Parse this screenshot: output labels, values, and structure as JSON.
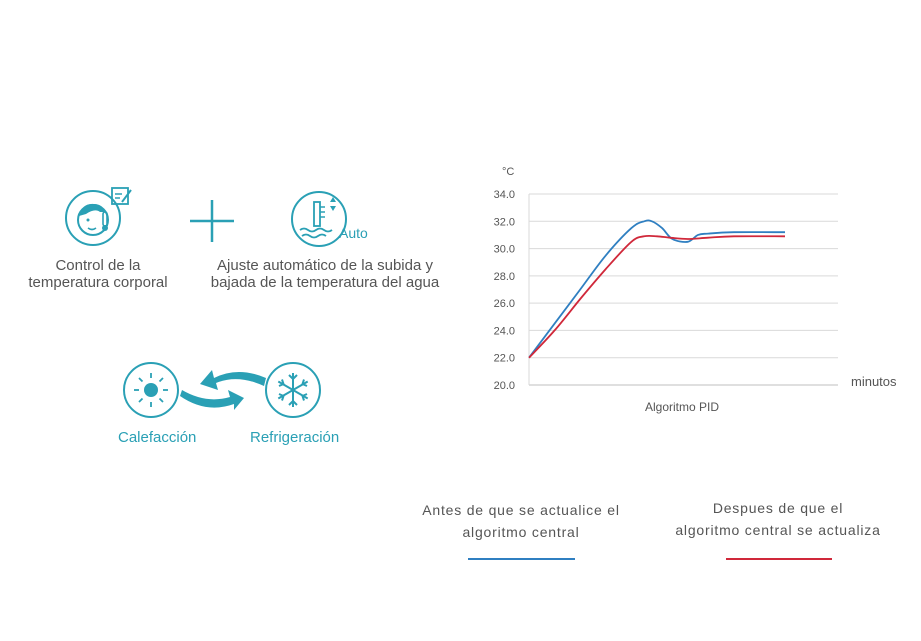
{
  "features": {
    "body_temp_label_1": "Control de la",
    "body_temp_label_2": "temperatura corporal",
    "water_adjust_label_1": "Ajuste automático de la subida y",
    "water_adjust_label_2": "bajada de la temperatura del agua",
    "auto_label": "Auto",
    "heating_label": "Calefacción",
    "cooling_label": "Refrigeración",
    "icons": [
      "child-thermometer-icon",
      "plus-icon",
      "water-level-icon",
      "sun-icon",
      "snowflake-icon",
      "exchange-arrows-icon"
    ]
  },
  "colors": {
    "teal": "#2aa0b5",
    "series_before": "#2f7fc1",
    "series_after": "#d0283a",
    "grid": "#d9d9d9"
  },
  "legend": {
    "before_line_1": "Antes de que se actualice el",
    "before_line_2": "algoritmo central",
    "after_line_1": "Despues de que el",
    "after_line_2": "algoritmo central se actualiza"
  },
  "chart_data": {
    "type": "line",
    "title": "",
    "xlabel": "Algoritmo PID",
    "ylabel": "°C",
    "x_unit_label": "minutos",
    "ylim": [
      20.0,
      34.0
    ],
    "yticks": [
      "20.0",
      "22.0",
      "24.0",
      "26.0",
      "28.0",
      "30.0",
      "32.0",
      "34.0"
    ],
    "grid": true,
    "series": [
      {
        "key": "before",
        "color": "#2f7fc1",
        "x": [
          0,
          0.1,
          0.2,
          0.3,
          0.4,
          0.45,
          0.48,
          0.52,
          0.56,
          0.62,
          0.66,
          0.7,
          0.8,
          1.0
        ],
        "y": [
          22.0,
          24.5,
          27.0,
          29.5,
          31.5,
          32.0,
          32.0,
          31.5,
          30.7,
          30.5,
          31.0,
          31.1,
          31.2,
          31.2
        ]
      },
      {
        "key": "after",
        "color": "#d0283a",
        "x": [
          0,
          0.1,
          0.2,
          0.3,
          0.4,
          0.45,
          0.5,
          0.55,
          0.62,
          0.7,
          0.8,
          1.0
        ],
        "y": [
          22.0,
          24.0,
          26.3,
          28.5,
          30.5,
          30.9,
          30.9,
          30.8,
          30.7,
          30.8,
          30.9,
          30.9
        ]
      }
    ]
  }
}
